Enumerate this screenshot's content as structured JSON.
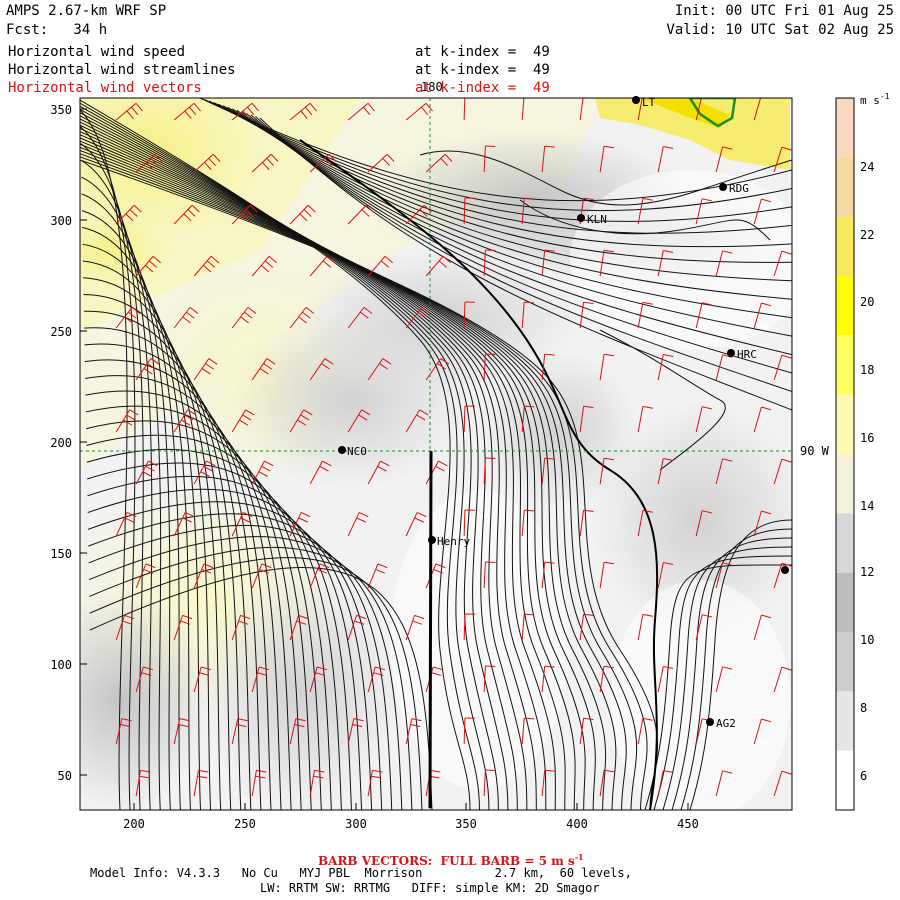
{
  "header": {
    "title": "AMPS 2.67-km WRF SP",
    "forecast": "Fcst:   34 h",
    "init": "Init: 00 UTC Fri 01 Aug 25",
    "valid": "Valid: 10 UTC Sat 02 Aug 25",
    "fields": [
      {
        "name": "Horizontal wind speed",
        "level": "at k-index =  49"
      },
      {
        "name": "Horizontal wind streamlines",
        "level": "at k-index =  49"
      },
      {
        "name": "Horizontal wind vectors",
        "level": "at k-index =  49"
      }
    ]
  },
  "map": {
    "x_ticks": [
      "200",
      "250",
      "300",
      "350",
      "400",
      "450"
    ],
    "y_ticks": [
      "50",
      "100",
      "150",
      "200",
      "250",
      "300",
      "350"
    ],
    "meridian_label": "180",
    "parallel_label": "90 W",
    "stations": [
      {
        "label": "NCO"
      },
      {
        "label": "Henry"
      },
      {
        "label": "KLN"
      },
      {
        "label": "RDG"
      },
      {
        "label": "HRC"
      },
      {
        "label": "AG2"
      },
      {
        "label": "LT"
      },
      {
        "label": ""
      }
    ]
  },
  "colorbar": {
    "unit": "m s",
    "unit_exp": "-1",
    "ticks": [
      "24",
      "22",
      "20",
      "18",
      "16",
      "14",
      "12",
      "10",
      "8",
      "6"
    ],
    "colors": [
      "#ffffff",
      "#e6e6e6",
      "#cdcdcd",
      "#bcbcbc",
      "#d8d8d8",
      "#f2f2dc",
      "#fafab0",
      "#ffff60",
      "#ffff00",
      "#f8e860",
      "#f6d9a0",
      "#fcd8c0"
    ]
  },
  "footer": {
    "barb_text": "BARB VECTORS:  FULL BARB = 5 m s",
    "barb_exp": "-1",
    "model_info": "Model Info: V4.3.3   No Cu   MYJ PBL  Morrison          2.7 km,  60 levels,",
    "physics": "LW: RRTM SW: RRTMG   DIFF: simple KM: 2D Smagor"
  }
}
